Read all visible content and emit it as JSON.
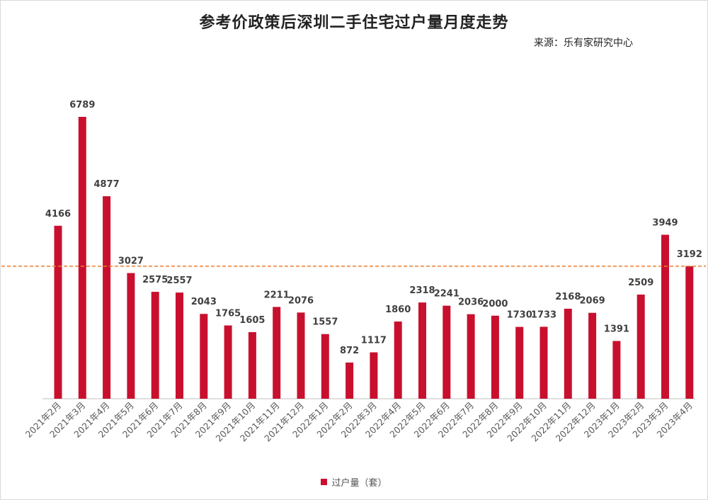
{
  "chart_data": {
    "type": "bar",
    "title": "参考价政策后深圳二手住宅过户量月度走势",
    "subtitle": "来源：乐有家研究中心",
    "categories": [
      "2021年2月",
      "2021年3月",
      "2021年4月",
      "2021年5月",
      "2021年6月",
      "2021年7月",
      "2021年8月",
      "2021年9月",
      "2021年10月",
      "2021年11月",
      "2021年12月",
      "2022年1月",
      "2022年2月",
      "2022年3月",
      "2022年4月",
      "2022年5月",
      "2022年6月",
      "2022年7月",
      "2022年8月",
      "2022年9月",
      "2022年10月",
      "2022年11月",
      "2022年12月",
      "2023年1月",
      "2023年2月",
      "2023年3月",
      "2023年4月"
    ],
    "series": [
      {
        "name": "过户量（套）",
        "values": [
          4166,
          6789,
          4877,
          3027,
          2575,
          2557,
          2043,
          1765,
          1605,
          2211,
          2076,
          1557,
          872,
          1117,
          1860,
          2318,
          2241,
          2036,
          2000,
          1730,
          1733,
          2168,
          2069,
          1391,
          2509,
          3949,
          3192
        ]
      }
    ],
    "reference_line": {
      "value": 3192,
      "color": "#ed7d31",
      "style": "dashed"
    },
    "ylim": [
      0,
      7500
    ],
    "grid": false,
    "legend": "bottom",
    "colors": {
      "bar": "#c8102e"
    }
  }
}
